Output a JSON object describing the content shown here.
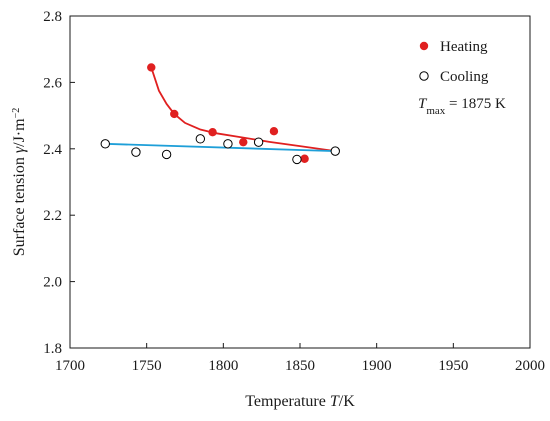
{
  "chart_data": {
    "type": "scatter",
    "xlabel": "Temperature T/K",
    "xlabel_parts": {
      "prefix": "Temperature ",
      "var": "T",
      "suffix": "/K"
    },
    "ylabel": "Surface tension γ/J·m⁻²",
    "ylabel_parts": {
      "prefix": "Surface tension ",
      "var": "γ",
      "unit": "/J·m",
      "exp": "−2"
    },
    "xlim": [
      1700,
      2000
    ],
    "ylim": [
      1.8,
      2.8
    ],
    "x_ticks": [
      1700,
      1750,
      1800,
      1850,
      1900,
      1950,
      2000
    ],
    "y_ticks": [
      1.8,
      2.0,
      2.2,
      2.4,
      2.6,
      2.8
    ],
    "x_tick_labels": [
      "1700",
      "1750",
      "1800",
      "1850",
      "1900",
      "1950",
      "2000"
    ],
    "y_tick_labels": [
      "1.8",
      "2.0",
      "2.2",
      "2.4",
      "2.6",
      "2.8"
    ],
    "grid": false,
    "legend_position": "top-right",
    "annotation": {
      "var": "T",
      "sub": "max",
      "text": " = 1875 K"
    },
    "series": [
      {
        "name": "Heating",
        "marker": "filled-circle",
        "color": "#e02020",
        "points": [
          {
            "x": 1753,
            "y": 2.645
          },
          {
            "x": 1768,
            "y": 2.505
          },
          {
            "x": 1793,
            "y": 2.45
          },
          {
            "x": 1813,
            "y": 2.42
          },
          {
            "x": 1833,
            "y": 2.453
          },
          {
            "x": 1853,
            "y": 2.37
          },
          {
            "x": 1873,
            "y": 2.393
          }
        ],
        "fit": {
          "color": "#e02020",
          "points": [
            {
              "x": 1753,
              "y": 2.645
            },
            {
              "x": 1758,
              "y": 2.575
            },
            {
              "x": 1763,
              "y": 2.535
            },
            {
              "x": 1768,
              "y": 2.505
            },
            {
              "x": 1775,
              "y": 2.478
            },
            {
              "x": 1785,
              "y": 2.458
            },
            {
              "x": 1795,
              "y": 2.447
            },
            {
              "x": 1810,
              "y": 2.436
            },
            {
              "x": 1830,
              "y": 2.421
            },
            {
              "x": 1850,
              "y": 2.408
            },
            {
              "x": 1873,
              "y": 2.393
            }
          ]
        }
      },
      {
        "name": "Cooling",
        "marker": "open-circle",
        "color": "#000000",
        "points": [
          {
            "x": 1723,
            "y": 2.415
          },
          {
            "x": 1743,
            "y": 2.39
          },
          {
            "x": 1763,
            "y": 2.383
          },
          {
            "x": 1785,
            "y": 2.43
          },
          {
            "x": 1803,
            "y": 2.415
          },
          {
            "x": 1823,
            "y": 2.42
          },
          {
            "x": 1848,
            "y": 2.368
          },
          {
            "x": 1873,
            "y": 2.393
          }
        ],
        "fit": {
          "color": "#1e9fd8",
          "points": [
            {
              "x": 1723,
              "y": 2.415
            },
            {
              "x": 1873,
              "y": 2.393
            }
          ]
        }
      }
    ]
  }
}
